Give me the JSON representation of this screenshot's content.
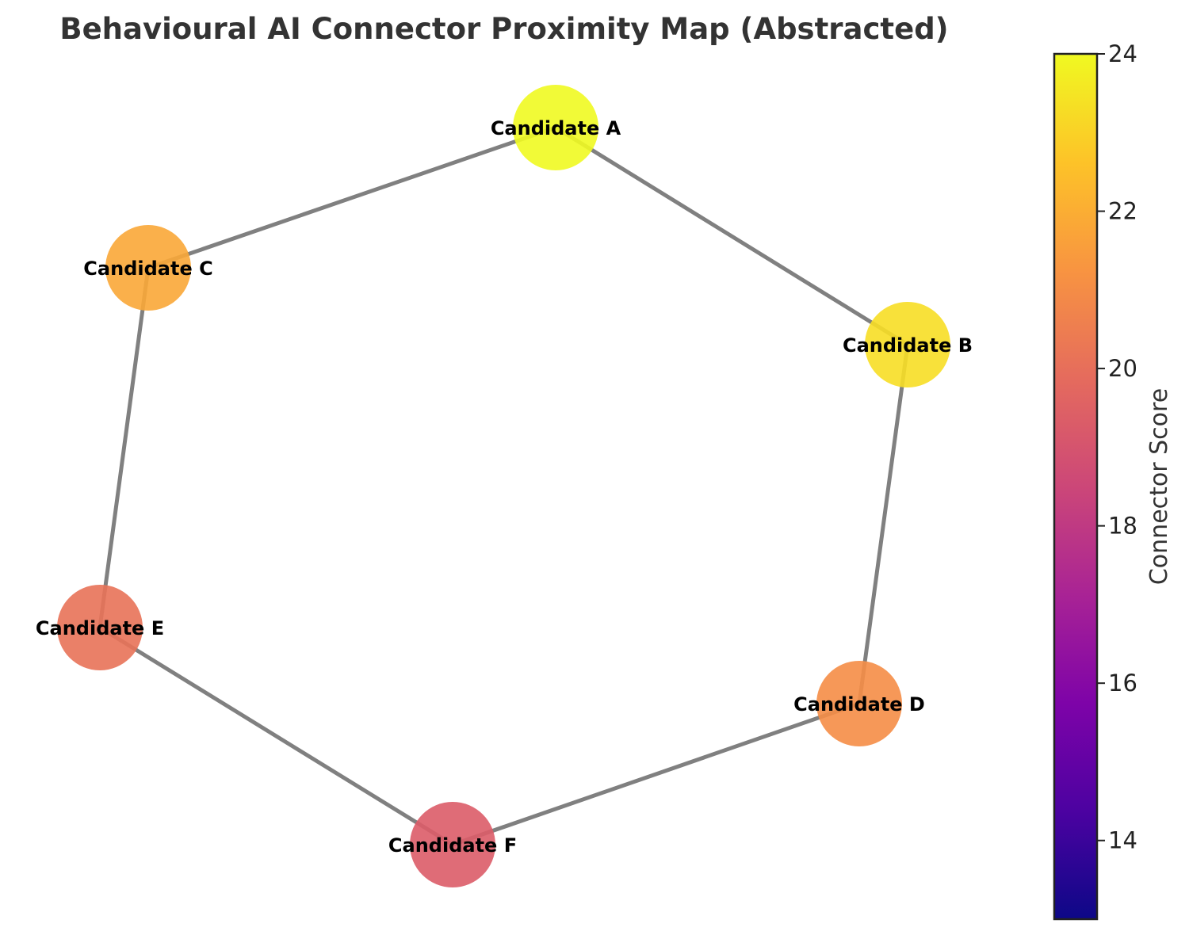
{
  "title": "Behavioural AI Connector Proximity Map (Abstracted)",
  "graph": {
    "nodes": [
      {
        "id": "A",
        "label": "Candidate A",
        "score": 24.0
      },
      {
        "id": "B",
        "label": "Candidate B",
        "score": 23.3
      },
      {
        "id": "C",
        "label": "Candidate C",
        "score": 21.8
      },
      {
        "id": "D",
        "label": "Candidate D",
        "score": 21.0
      },
      {
        "id": "E",
        "label": "Candidate E",
        "score": 20.1
      },
      {
        "id": "F",
        "label": "Candidate F",
        "score": 19.3
      }
    ],
    "edges": [
      [
        "A",
        "B"
      ],
      [
        "B",
        "D"
      ],
      [
        "D",
        "F"
      ],
      [
        "F",
        "E"
      ],
      [
        "E",
        "C"
      ],
      [
        "C",
        "A"
      ]
    ]
  },
  "colorbar": {
    "label": "Connector Score",
    "colormap": "plasma",
    "min": 13,
    "max": 24,
    "ticks": [
      14,
      16,
      18,
      20,
      22,
      24
    ]
  }
}
